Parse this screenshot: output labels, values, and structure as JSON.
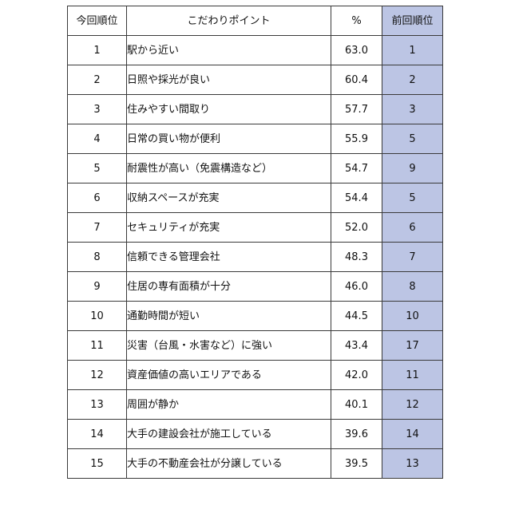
{
  "table": {
    "headers": {
      "rank": "今回順位",
      "point": "こだわりポイント",
      "pct": "%",
      "prev": "前回順位"
    },
    "colors": {
      "prev_column_bg": "#bcc5e4",
      "border": "#3a3a3a"
    },
    "rows": [
      {
        "rank": "1",
        "point": "駅から近い",
        "pct": "63.0",
        "prev": "1"
      },
      {
        "rank": "2",
        "point": "日照や採光が良い",
        "pct": "60.4",
        "prev": "2"
      },
      {
        "rank": "3",
        "point": "住みやすい間取り",
        "pct": "57.7",
        "prev": "3"
      },
      {
        "rank": "4",
        "point": "日常の買い物が便利",
        "pct": "55.9",
        "prev": "5"
      },
      {
        "rank": "5",
        "point": "耐震性が高い（免震構造など）",
        "pct": "54.7",
        "prev": "9"
      },
      {
        "rank": "6",
        "point": "収納スペースが充実",
        "pct": "54.4",
        "prev": "5"
      },
      {
        "rank": "7",
        "point": "セキュリティが充実",
        "pct": "52.0",
        "prev": "6"
      },
      {
        "rank": "8",
        "point": "信頼できる管理会社",
        "pct": "48.3",
        "prev": "7"
      },
      {
        "rank": "9",
        "point": "住居の専有面積が十分",
        "pct": "46.0",
        "prev": "8"
      },
      {
        "rank": "10",
        "point": "通勤時間が短い",
        "pct": "44.5",
        "prev": "10"
      },
      {
        "rank": "11",
        "point": "災害（台風・水害など）に強い",
        "pct": "43.4",
        "prev": "17"
      },
      {
        "rank": "12",
        "point": "資産価値の高いエリアである",
        "pct": "42.0",
        "prev": "11"
      },
      {
        "rank": "13",
        "point": "周囲が静か",
        "pct": "40.1",
        "prev": "12"
      },
      {
        "rank": "14",
        "point": "大手の建設会社が施工している",
        "pct": "39.6",
        "prev": "14"
      },
      {
        "rank": "15",
        "point": "大手の不動産会社が分譲している",
        "pct": "39.5",
        "prev": "13"
      }
    ]
  }
}
